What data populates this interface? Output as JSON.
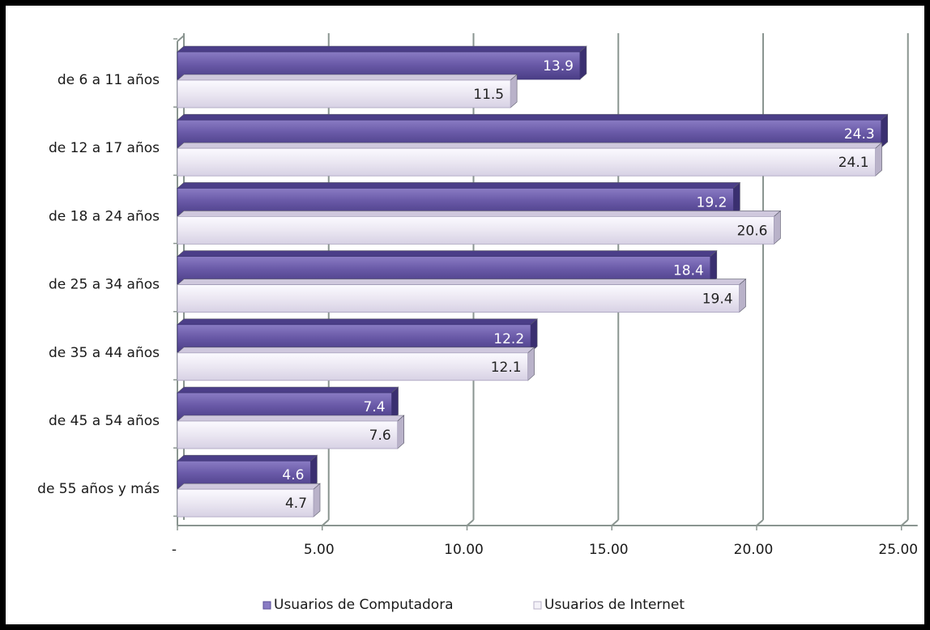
{
  "chart_data": {
    "type": "bar",
    "orientation": "horizontal",
    "categories": [
      "de 6 a 11 años",
      "de 12 a 17 años",
      "de 18 a 24 años",
      "de 25 a 34 años",
      "de 35 a 44 años",
      "de 45 a 54 años",
      "de 55 años y más"
    ],
    "series": [
      {
        "name": "Usuarios de Computadora",
        "values": [
          13.9,
          24.3,
          19.2,
          18.4,
          12.2,
          7.4,
          4.6
        ],
        "color": "#6a5aa8"
      },
      {
        "name": "Usuarios de Internet",
        "values": [
          11.5,
          24.1,
          20.6,
          19.4,
          12.1,
          7.6,
          4.7
        ],
        "color": "#ebe7f2"
      }
    ],
    "value_labels": {
      "Usuarios de Computadora": [
        "13.9",
        "24.3",
        "19.2",
        "18.4",
        "12.2",
        "7.4",
        "4.6"
      ],
      "Usuarios de Internet": [
        "11.5",
        "24.1",
        "20.6",
        "19.4",
        "12.1",
        "7.6",
        "4.7"
      ]
    },
    "x_ticks": [
      "-",
      "5.00",
      "10.00",
      "15.00",
      "20.00",
      "25.00"
    ],
    "xlim": [
      0,
      25
    ],
    "grid": true,
    "legend_position": "bottom",
    "title": "",
    "xlabel": "",
    "ylabel": ""
  }
}
